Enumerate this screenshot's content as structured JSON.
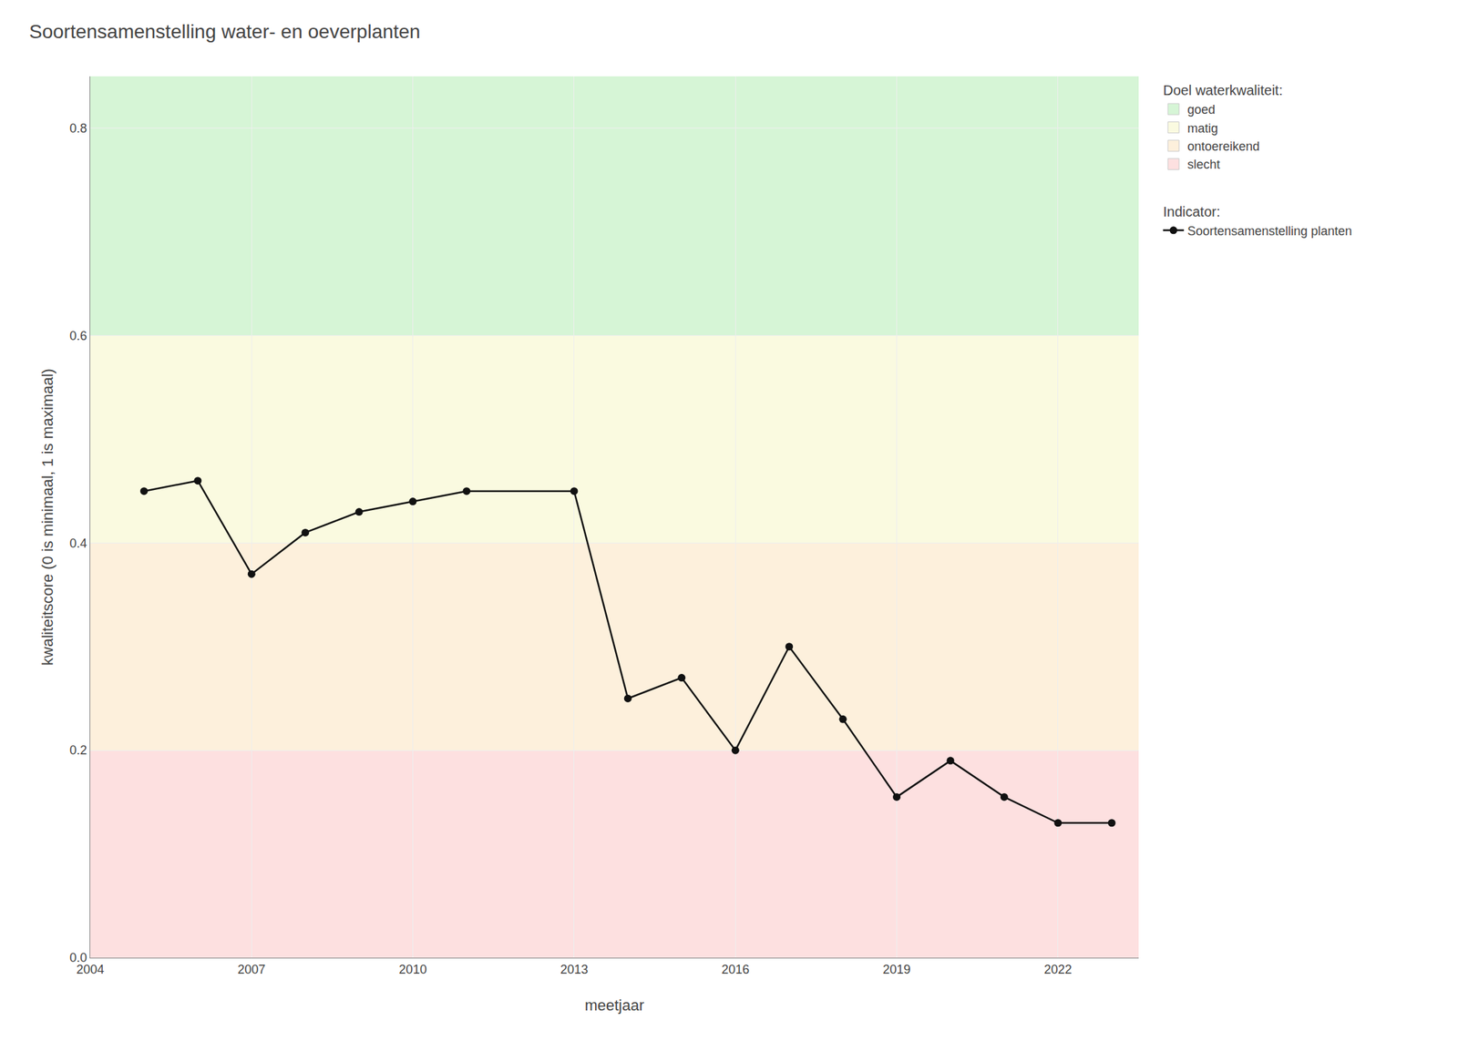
{
  "chart_data": {
    "type": "line",
    "title": "Soortensamenstelling water- en oeverplanten",
    "xlabel": "meetjaar",
    "ylabel": "kwaliteitscore (0 is minimaal, 1 is maximaal)",
    "xlim": [
      2004,
      2023.5
    ],
    "ylim": [
      0.0,
      0.85
    ],
    "xticks": [
      2004,
      2007,
      2010,
      2013,
      2016,
      2019,
      2022
    ],
    "yticks": [
      {
        "value": 0.0,
        "label": "0.0"
      },
      0.2,
      0.4,
      0.6,
      0.8
    ],
    "grid": true,
    "legend": "right",
    "x": [
      2005,
      2006,
      2007,
      2008,
      2009,
      2010,
      2011,
      2013,
      2014,
      2015,
      2016,
      2017,
      2018,
      2019,
      2020,
      2021,
      2022,
      2023
    ],
    "series": [
      {
        "name": "Soortensamenstelling planten",
        "legend_title": "Indicator:",
        "color": "#111111",
        "marker": "circle",
        "line_style": "solid",
        "values": [
          0.45,
          0.46,
          0.37,
          0.41,
          0.43,
          0.44,
          0.45,
          0.45,
          0.25,
          0.27,
          0.2,
          0.3,
          0.23,
          0.155,
          0.19,
          0.155,
          0.13,
          0.13
        ]
      }
    ],
    "zones": {
      "title": "Doel waterkwaliteit:",
      "bands": [
        {
          "name": "goed",
          "color": "#d6f5d6",
          "range": [
            0.6,
            0.85
          ]
        },
        {
          "name": "matig",
          "color": "#fafae0",
          "range": [
            0.4,
            0.6
          ]
        },
        {
          "name": "ontoereikend",
          "color": "#fdf0dc",
          "range": [
            0.2,
            0.4
          ]
        },
        {
          "name": "slecht",
          "color": "#fde0e0",
          "range": [
            0.0,
            0.2
          ]
        }
      ]
    }
  }
}
